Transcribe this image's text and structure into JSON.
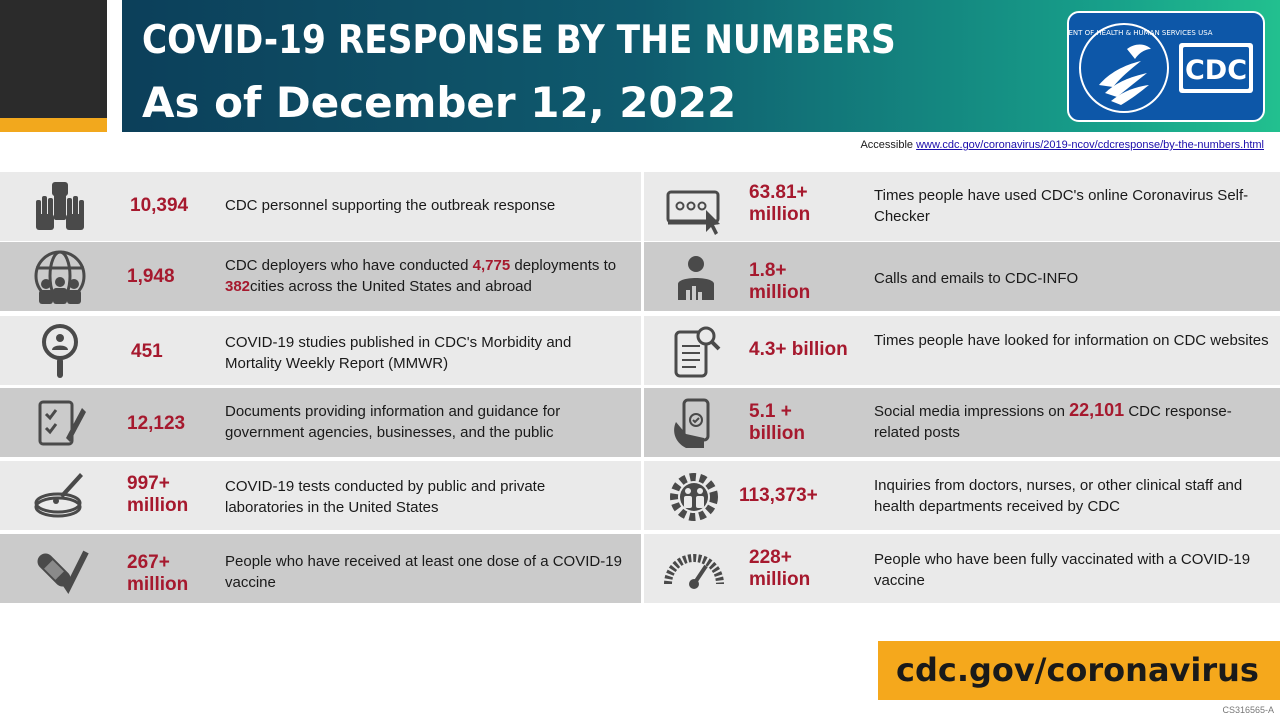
{
  "header": {
    "title": "COVID-19 RESPONSE BY THE NUMBERS",
    "subtitle": "As of December 12, 2022",
    "logo": {
      "text": "CDC",
      "seal_text": "DEPARTMENT OF HEALTH & HUMAN SERVICES USA",
      "icon": "hhs-eagle-icon"
    }
  },
  "accessible": {
    "label": "Accessible",
    "link": "www.cdc.gov/coronavirus/2019-ncov/cdcresponse/by-the-numbers.html"
  },
  "left": [
    {
      "icon": "raised-hands-icon",
      "number": "10,394",
      "desc": "CDC personnel supporting the outbreak response"
    },
    {
      "icon": "globe-people-icon",
      "number": "1,948",
      "desc": {
        "a": "CDC deployers who have conducted ",
        "b": "4,775",
        "c": " deployments to ",
        "d": "382",
        "e": "cities  across the United States and abroad"
      }
    },
    {
      "icon": "magnifier-person-icon",
      "number": "451",
      "desc": "COVID-19 studies published in CDC's Morbidity and Mortality Weekly Report (MMWR)"
    },
    {
      "icon": "document-pen-icon",
      "number": "12,123",
      "desc": "Documents providing information and guidance for government agencies, businesses, and the public"
    },
    {
      "icon": "petri-dish-icon",
      "number_line1": "997+",
      "number_line2": "million",
      "desc": "COVID-19 tests conducted by public and private laboratories in the United States"
    },
    {
      "icon": "bandage-check-icon",
      "number_line1": "267+",
      "number_line2": "million",
      "desc": "People who have received at least one dose of a COVID-19 vaccine"
    }
  ],
  "right": [
    {
      "icon": "browser-cursor-icon",
      "number_line1": "63.81+",
      "number_line2": "million",
      "desc": "Times people have used CDC's online Coronavirus Self-Checker"
    },
    {
      "icon": "person-chart-icon",
      "number_line1": "1.8+",
      "number_line2": "million",
      "desc": "Calls and emails to CDC-INFO"
    },
    {
      "icon": "document-search-icon",
      "number": "4.3+ billion",
      "desc": "Times people have looked for information  on CDC websites"
    },
    {
      "icon": "phone-hand-icon",
      "number_line1": "5.1 +",
      "number_line2": "billion",
      "desc": {
        "a": "Social media impressions on ",
        "b": "22,101",
        "c": " CDC response-related posts"
      }
    },
    {
      "icon": "gear-people-icon",
      "number": "113,373+",
      "desc": "Inquiries from doctors, nurses, or other clinical staff and health departments received by CDC"
    },
    {
      "icon": "gauge-icon",
      "number_line1": "228+",
      "number_line2": "million",
      "desc": "People who have been fully vaccinated with a COVID-19  vaccine"
    }
  ],
  "footer": {
    "url": "cdc.gov/coronavirus",
    "code": "CS316565-A"
  },
  "colors": {
    "accent_red": "#a6192e",
    "gold": "#f5a81c",
    "banner_start": "#0c3f5a",
    "banner_end": "#22c08f",
    "logo_blue": "#0d57a8"
  }
}
